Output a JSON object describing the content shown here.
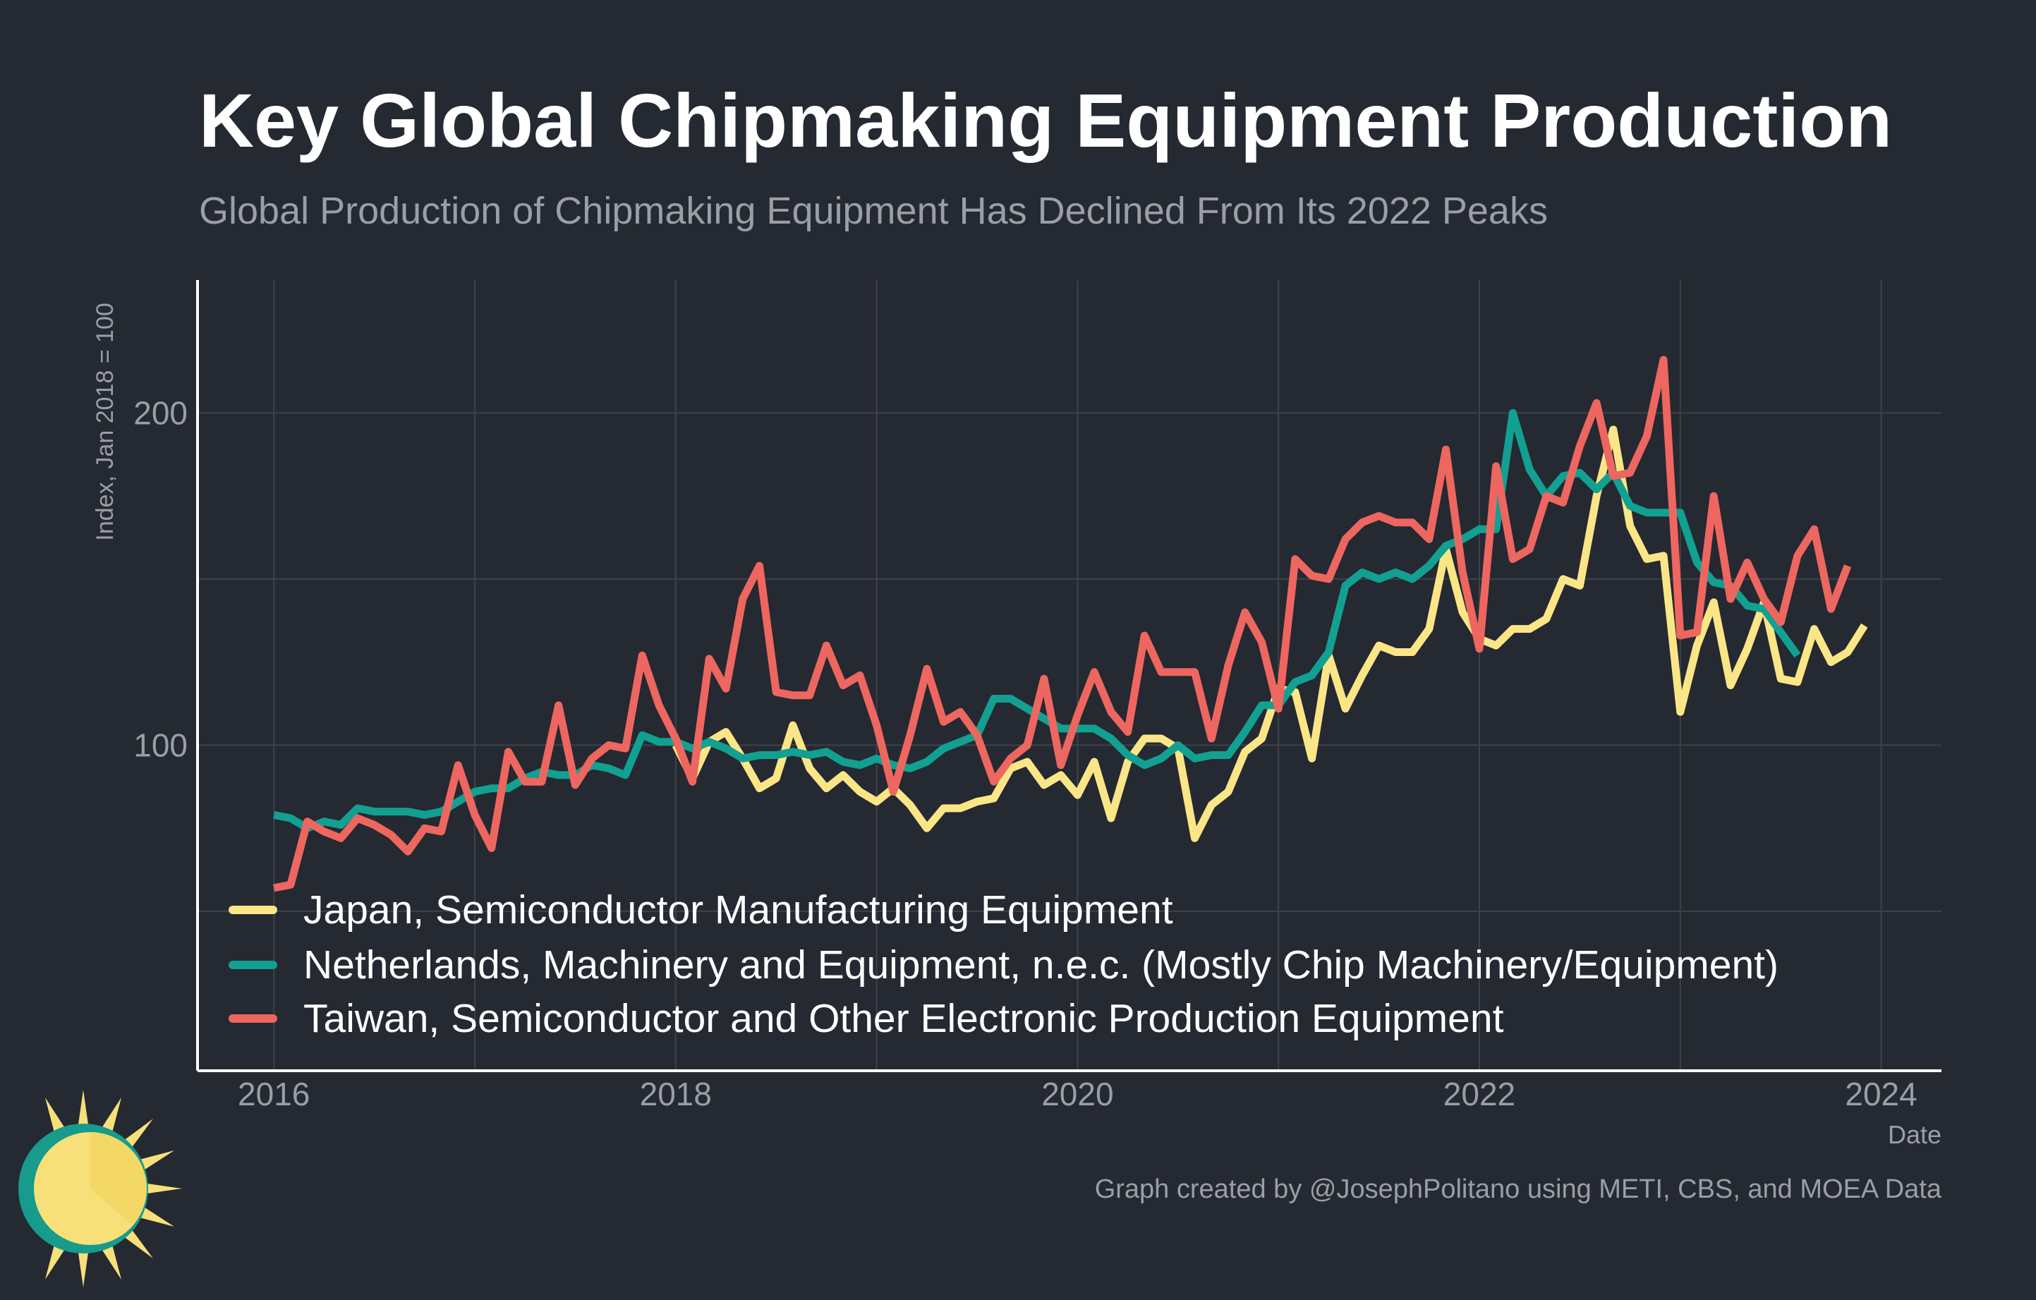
{
  "title": "Key Global Chipmaking Equipment Production",
  "subtitle": "Global Production of Chipmaking Equipment Has Declined From Its 2022 Peaks",
  "caption": "Graph created by @JosephPolitano using METI, CBS, and MOEA Data",
  "colors": {
    "background": "#252931",
    "grid": "#3d424b",
    "axis": "#ffffff",
    "text": "#9a9ea6",
    "logo_sun": "#f7e07a",
    "logo_ring": "#169b8c"
  },
  "logo": {
    "icon": "sun-logo-icon"
  },
  "chart_data": {
    "type": "line",
    "xlabel": "Date",
    "ylabel": "Index, Jan 2018 = 100",
    "x_ticks": [
      2016,
      2018,
      2020,
      2022,
      2024
    ],
    "y_ticks": [
      100,
      200
    ],
    "y_gridlines": [
      50,
      100,
      150,
      200
    ],
    "xlim": [
      2015.62,
      2024.3
    ],
    "ylim": [
      2,
      240
    ],
    "grid": true,
    "legend_position": "bottom-left",
    "start": "2016-01",
    "frequency": "monthly",
    "series": [
      {
        "name": "Japan, Semiconductor Manufacturing Equipment",
        "color": "#fbe687",
        "start": "2018-01",
        "values": [
          100,
          90,
          101,
          104,
          96,
          87,
          90,
          106,
          93,
          87,
          91,
          86,
          83,
          87,
          82,
          75,
          81,
          81,
          83,
          84,
          93,
          95,
          88,
          91,
          85,
          95,
          78,
          95,
          102,
          102,
          99,
          72,
          82,
          86,
          98,
          102,
          117,
          116,
          96,
          127,
          111,
          121,
          130,
          128,
          128,
          135,
          159,
          140,
          132,
          130,
          135,
          135,
          138,
          150,
          148,
          175,
          195,
          166,
          156,
          157,
          110,
          130,
          143,
          118,
          129,
          143,
          120,
          119,
          135,
          125,
          128,
          136
        ]
      },
      {
        "name": "Netherlands, Machinery and Equipment, n.e.c. (Mostly Chip Machinery/Equipment)",
        "color": "#11a091",
        "start": "2016-01",
        "values": [
          79,
          78,
          75,
          77,
          76,
          81,
          80,
          80,
          80,
          79,
          80,
          83,
          86,
          87,
          87,
          90,
          92,
          91,
          91,
          94,
          93,
          91,
          103,
          101,
          101,
          99,
          101,
          99,
          96,
          97,
          97,
          98,
          97,
          98,
          95,
          94,
          96,
          94,
          93,
          95,
          99,
          101,
          103,
          114,
          114,
          111,
          108,
          105,
          105,
          105,
          102,
          97,
          94,
          96,
          100,
          96,
          97,
          97,
          104,
          112,
          112,
          119,
          121,
          128,
          148,
          152,
          150,
          152,
          150,
          154,
          160,
          162,
          165,
          165,
          200,
          183,
          175,
          181,
          182,
          177,
          182,
          172,
          170,
          170,
          170,
          155,
          149,
          148,
          142,
          141,
          134,
          127
        ]
      },
      {
        "name": "Taiwan, Semiconductor and Other Electronic Production Equipment",
        "color": "#ee6660",
        "start": "2016-01",
        "values": [
          57,
          58,
          77,
          74,
          72,
          78,
          76,
          73,
          68,
          75,
          74,
          94,
          79,
          69,
          98,
          89,
          89,
          112,
          88,
          96,
          100,
          99,
          127,
          112,
          102,
          89,
          126,
          117,
          144,
          154,
          116,
          115,
          115,
          130,
          118,
          121,
          106,
          86,
          103,
          123,
          107,
          110,
          103,
          89,
          96,
          100,
          120,
          94,
          109,
          122,
          110,
          104,
          133,
          122,
          122,
          122,
          102,
          124,
          140,
          131,
          111,
          156,
          151,
          150,
          162,
          167,
          169,
          167,
          167,
          162,
          189,
          152,
          129,
          184,
          156,
          159,
          175,
          173,
          190,
          203,
          181,
          182,
          193,
          216,
          133,
          134,
          175,
          144,
          155,
          144,
          137,
          157,
          165,
          141,
          154
        ]
      }
    ]
  }
}
